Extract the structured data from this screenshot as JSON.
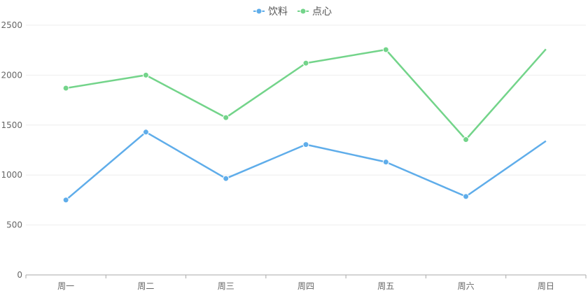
{
  "chart_data": {
    "type": "line",
    "title": "",
    "xlabel": "",
    "ylabel": "",
    "categories": [
      "周一",
      "周二",
      "周三",
      "周四",
      "周五",
      "周六",
      "周日"
    ],
    "ylim": [
      0,
      2500
    ],
    "yticks": [
      0,
      500,
      1000,
      1500,
      2000,
      2500
    ],
    "grid": true,
    "legend_position": "top-center",
    "series": [
      {
        "name": "饮料",
        "color": "#5FADEA",
        "values": [
          750,
          1430,
          965,
          1305,
          1130,
          785,
          1340
        ]
      },
      {
        "name": "点心",
        "color": "#73D48A",
        "values": [
          1870,
          2000,
          1575,
          2120,
          2255,
          1355,
          2260
        ]
      }
    ]
  }
}
